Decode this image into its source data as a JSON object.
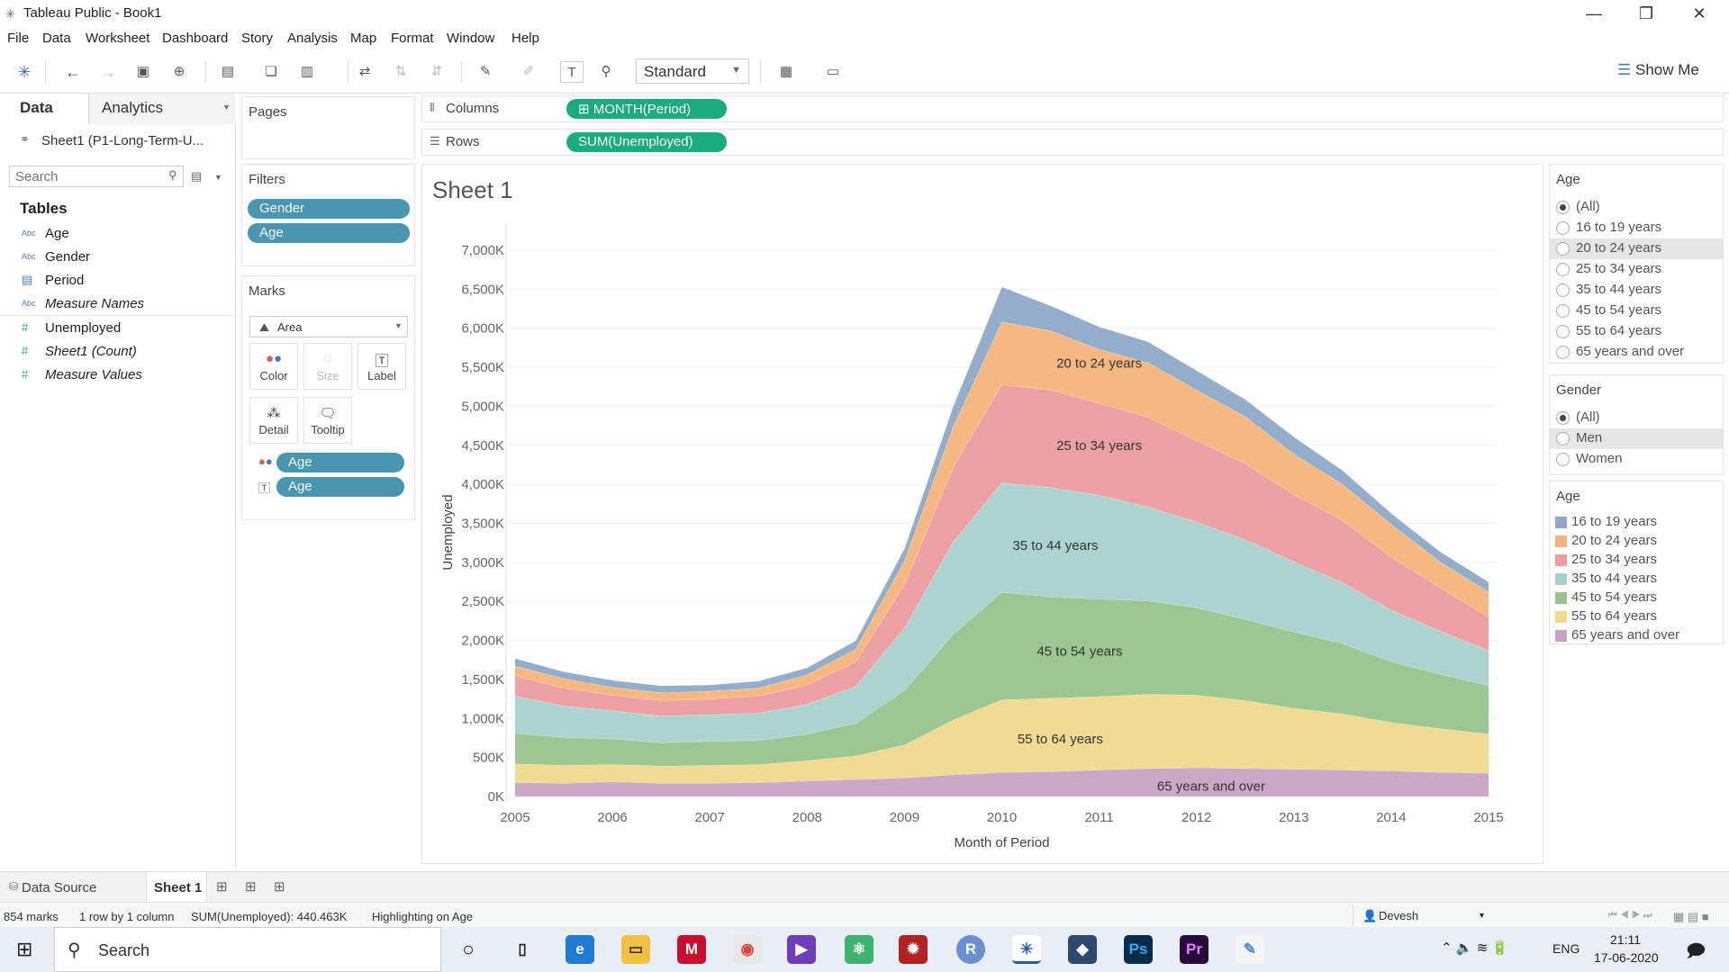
{
  "window": {
    "title": "Tableau Public - Book1",
    "minimize": "—",
    "restore": "❐",
    "close": "✕"
  },
  "menu": [
    "File",
    "Data",
    "Worksheet",
    "Dashboard",
    "Story",
    "Analysis",
    "Map",
    "Format",
    "Window",
    "Help"
  ],
  "toolbar": {
    "fit_value": "Standard",
    "show_me": "Show Me"
  },
  "data_pane": {
    "tab_data": "Data",
    "tab_analytics": "Analytics",
    "datasource": "Sheet1 (P1-Long-Term-U...",
    "search_placeholder": "Search",
    "tables_heading": "Tables",
    "fields": [
      {
        "name": "Age",
        "type": "Abc"
      },
      {
        "name": "Gender",
        "type": "Abc"
      },
      {
        "name": "Period",
        "type": "date"
      },
      {
        "name": "Measure Names",
        "type": "Abc"
      },
      {
        "name": "Unemployed",
        "type": "#"
      },
      {
        "name": "Sheet1 (Count)",
        "type": "#"
      },
      {
        "name": "Measure Values",
        "type": "#"
      }
    ]
  },
  "pages": {
    "title": "Pages"
  },
  "filters": {
    "title": "Filters",
    "items": [
      "Gender",
      "Age"
    ]
  },
  "marks": {
    "title": "Marks",
    "type": "Area",
    "buttons": [
      "Color",
      "Size",
      "Label",
      "Detail",
      "Tooltip"
    ],
    "pills": [
      "Age",
      "Age"
    ]
  },
  "shelves": {
    "columns_label": "Columns",
    "columns_pill": "MONTH(Period)",
    "rows_label": "Rows",
    "rows_pill": "SUM(Unemployed)"
  },
  "sheet": {
    "title": "Sheet 1"
  },
  "chart_data": {
    "type": "area",
    "stacked": true,
    "xlabel": "Month of Period",
    "ylabel": "Unemployed",
    "x": [
      2005,
      2005.5,
      2006,
      2006.5,
      2007,
      2007.5,
      2008,
      2008.5,
      2009,
      2009.5,
      2010,
      2010.5,
      2011,
      2011.5,
      2012,
      2012.5,
      2013,
      2013.5,
      2014,
      2014.5,
      2015
    ],
    "x_ticks": [
      "2005",
      "2006",
      "2007",
      "2008",
      "2009",
      "2010",
      "2011",
      "2012",
      "2013",
      "2014",
      "2015"
    ],
    "y_ticks": [
      "0K",
      "500K",
      "1,000K",
      "1,500K",
      "2,000K",
      "2,500K",
      "3,000K",
      "3,500K",
      "4,000K",
      "4,500K",
      "5,000K",
      "5,500K",
      "6,000K",
      "6,500K",
      "7,000K"
    ],
    "ylim": [
      0,
      7000
    ],
    "series": [
      {
        "name": "65 years and over",
        "color": "#c9a3c5",
        "values": [
          180,
          170,
          190,
          170,
          170,
          180,
          200,
          220,
          240,
          280,
          310,
          320,
          340,
          360,
          370,
          360,
          350,
          340,
          330,
          310,
          300
        ]
      },
      {
        "name": "55 to 64 years",
        "color": "#f0d98c",
        "values": [
          240,
          230,
          220,
          220,
          230,
          230,
          260,
          300,
          420,
          700,
          930,
          940,
          940,
          950,
          930,
          870,
          780,
          720,
          620,
          560,
          500
        ]
      },
      {
        "name": "45 to 54 years",
        "color": "#98c48c",
        "values": [
          390,
          360,
          330,
          300,
          310,
          310,
          340,
          420,
          700,
          1100,
          1380,
          1300,
          1250,
          1200,
          1120,
          1040,
          980,
          900,
          780,
          700,
          620
        ]
      },
      {
        "name": "35 to 44 years",
        "color": "#a8d1cc",
        "values": [
          480,
          400,
          360,
          340,
          340,
          350,
          380,
          470,
          800,
          1180,
          1400,
          1400,
          1330,
          1200,
          1100,
          1020,
          900,
          780,
          660,
          550,
          450
        ]
      },
      {
        "name": "25 to 34 years",
        "color": "#ec9c9d",
        "values": [
          260,
          230,
          200,
          200,
          200,
          220,
          250,
          320,
          560,
          960,
          1260,
          1250,
          1180,
          1150,
          1040,
          980,
          860,
          800,
          680,
          560,
          430
        ]
      },
      {
        "name": "20 to 24 years",
        "color": "#f4b47a",
        "values": [
          120,
          120,
          100,
          100,
          100,
          100,
          130,
          160,
          300,
          520,
          800,
          760,
          690,
          700,
          650,
          600,
          520,
          460,
          420,
          330,
          320
        ]
      },
      {
        "name": "16 to 19 years",
        "color": "#8ea9c8",
        "values": [
          100,
          90,
          90,
          90,
          80,
          90,
          90,
          110,
          160,
          260,
          450,
          320,
          290,
          270,
          250,
          220,
          220,
          180,
          140,
          130,
          130
        ]
      }
    ],
    "labels": [
      {
        "series": "20 to 24 years",
        "text": "20 to 24 years",
        "x": 2011,
        "y": 5550
      },
      {
        "series": "25 to 34 years",
        "text": "25 to 34 years",
        "x": 2011,
        "y": 4500
      },
      {
        "series": "35 to 44 years",
        "text": "35 to 44 years",
        "x": 2010.55,
        "y": 3220
      },
      {
        "series": "45 to 54 years",
        "text": "45 to 54 years",
        "x": 2010.8,
        "y": 1860
      },
      {
        "series": "55 to 64 years",
        "text": "55 to 64 years",
        "x": 2010.6,
        "y": 740
      },
      {
        "series": "65 years and over",
        "text": "65 years and over",
        "x": 2012.15,
        "y": 130
      }
    ]
  },
  "filter_age": {
    "title": "Age",
    "options": [
      "(All)",
      "16 to 19 years",
      "20 to 24 years",
      "25 to 34 years",
      "35 to 44 years",
      "45 to 54 years",
      "55 to 64 years",
      "65 years and over"
    ],
    "selected": 0,
    "highlighted": 2
  },
  "filter_gender": {
    "title": "Gender",
    "options": [
      "(All)",
      "Men",
      "Women"
    ],
    "selected": 0,
    "highlighted": 1
  },
  "color_legend": {
    "title": "Age",
    "items": [
      {
        "label": "16 to 19 years",
        "color": "#8ea9c8"
      },
      {
        "label": "20 to 24 years",
        "color": "#f4b47a"
      },
      {
        "label": "25 to 34 years",
        "color": "#ec9c9d"
      },
      {
        "label": "35 to 44 years",
        "color": "#a8d1cc"
      },
      {
        "label": "45 to 54 years",
        "color": "#98c48c"
      },
      {
        "label": "55 to 64 years",
        "color": "#f0d98c"
      },
      {
        "label": "65 years and over",
        "color": "#c9a3c5"
      }
    ]
  },
  "bottom_tabs": {
    "data_source": "Data Source",
    "sheet1": "Sheet 1"
  },
  "status": {
    "marks": "854 marks",
    "rowcol": "1 row by 1 column",
    "sum": "SUM(Unemployed): 440.463K",
    "highlight": "Highlighting on Age",
    "user": "Devesh"
  },
  "taskbar": {
    "search": "Search",
    "lang": "ENG",
    "time": "21:11",
    "date": "17-06-2020"
  }
}
